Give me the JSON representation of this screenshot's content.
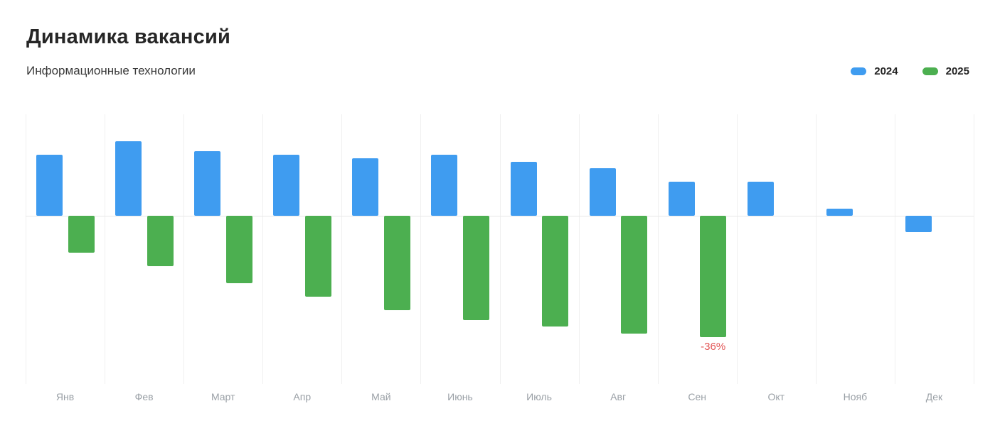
{
  "header": {
    "title": "Динамика вакансий",
    "subtitle": "Информационные технологии"
  },
  "legend": {
    "items": [
      {
        "label": "2024",
        "color": "#3f9cf0"
      },
      {
        "label": "2025",
        "color": "#4caf50"
      }
    ]
  },
  "chart_data": {
    "type": "bar",
    "title": "Динамика вакансий",
    "subtitle": "Информационные технологии",
    "categories": [
      "Янв",
      "Фев",
      "Март",
      "Апр",
      "Май",
      "Июнь",
      "Июль",
      "Авг",
      "Сен",
      "Окт",
      "Нояб",
      "Дек"
    ],
    "series": [
      {
        "name": "2024",
        "color": "#3f9cf0",
        "values": [
          18,
          22,
          19,
          18,
          17,
          18,
          16,
          14,
          10,
          10,
          2,
          -5
        ]
      },
      {
        "name": "2025",
        "color": "#4caf50",
        "values": [
          -11,
          -15,
          -20,
          -24,
          -28,
          -31,
          -33,
          -35,
          -36,
          null,
          null,
          null
        ]
      }
    ],
    "unit": "%",
    "ylim": [
      -50,
      30
    ],
    "grid": "vertical-only",
    "legend_position": "top-right",
    "annotations": [
      {
        "series": "2025",
        "category": "Сен",
        "text": "-36%",
        "color": "#e25555"
      }
    ]
  }
}
